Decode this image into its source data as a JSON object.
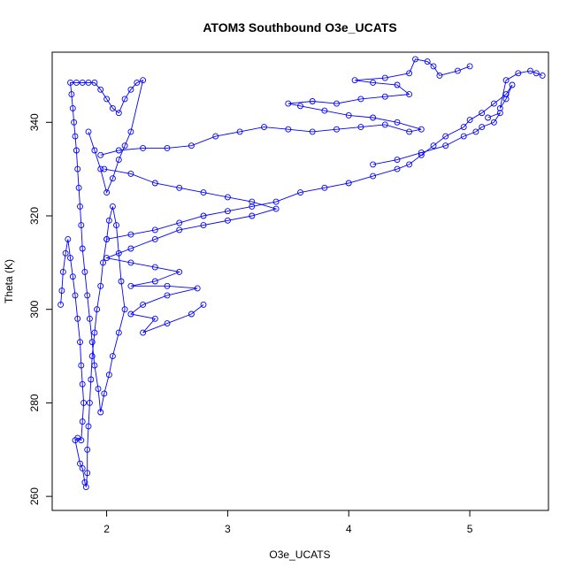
{
  "chart_data": {
    "type": "scatter",
    "title": "ATOM3 Southbound O3e_UCATS",
    "xlabel": "O3e_UCATS",
    "ylabel": "Theta (K)",
    "xlim": [
      1.55,
      5.65
    ],
    "ylim": [
      257,
      355
    ],
    "xticks": [
      2,
      3,
      4,
      5
    ],
    "yticks": [
      260,
      280,
      300,
      320,
      340
    ],
    "grid": false,
    "marker": "open-circle",
    "connected": true,
    "color": "#0000ff",
    "series": [
      {
        "points": [
          [
            1.62,
            301
          ],
          [
            1.63,
            304
          ],
          [
            1.64,
            308
          ],
          [
            1.66,
            312
          ],
          [
            1.68,
            315
          ],
          [
            1.7,
            311
          ],
          [
            1.72,
            307
          ],
          [
            1.74,
            303
          ],
          [
            1.76,
            298
          ],
          [
            1.78,
            293
          ],
          [
            1.79,
            288
          ],
          [
            1.8,
            284
          ],
          [
            1.81,
            280
          ],
          [
            1.8,
            276
          ],
          [
            1.79,
            272
          ],
          [
            1.76,
            272.5
          ],
          [
            1.74,
            272
          ],
          [
            1.78,
            267
          ],
          [
            1.8,
            266
          ],
          [
            1.82,
            263
          ],
          [
            1.83,
            262
          ],
          [
            1.84,
            265
          ],
          [
            1.84,
            270
          ],
          [
            1.85,
            275
          ],
          [
            1.86,
            280
          ],
          [
            1.87,
            285
          ],
          [
            1.88,
            290
          ],
          [
            1.9,
            295
          ],
          [
            1.92,
            300
          ],
          [
            1.95,
            305
          ],
          [
            1.97,
            310
          ],
          [
            2.0,
            315
          ],
          [
            2.02,
            319
          ],
          [
            2.05,
            322
          ],
          [
            2.08,
            318
          ],
          [
            2.1,
            312
          ],
          [
            2.12,
            306
          ],
          [
            2.15,
            300
          ],
          [
            2.1,
            295
          ],
          [
            2.05,
            290
          ],
          [
            2.02,
            286
          ],
          [
            1.98,
            282
          ],
          [
            1.95,
            278
          ],
          [
            1.93,
            283
          ],
          [
            1.9,
            288
          ],
          [
            1.88,
            293
          ],
          [
            1.86,
            298
          ],
          [
            1.84,
            303
          ],
          [
            1.82,
            308
          ],
          [
            1.8,
            313
          ],
          [
            1.79,
            318
          ],
          [
            1.78,
            322
          ],
          [
            1.77,
            326
          ],
          [
            1.76,
            330
          ],
          [
            1.75,
            334
          ],
          [
            1.74,
            337
          ],
          [
            1.73,
            340
          ],
          [
            1.72,
            343
          ],
          [
            1.71,
            346
          ],
          [
            1.7,
            348.5
          ],
          [
            1.75,
            348.5
          ],
          [
            1.8,
            348.5
          ],
          [
            1.85,
            348.5
          ],
          [
            1.9,
            348.5
          ],
          [
            1.95,
            347
          ],
          [
            2.0,
            345
          ],
          [
            2.05,
            343
          ],
          [
            2.1,
            342
          ],
          [
            2.15,
            345
          ],
          [
            2.2,
            347
          ],
          [
            2.25,
            348.5
          ],
          [
            2.3,
            349
          ],
          [
            2.2,
            338
          ],
          [
            2.15,
            335
          ],
          [
            2.1,
            332
          ],
          [
            2.05,
            328
          ],
          [
            2.0,
            325
          ],
          [
            1.95,
            330
          ],
          [
            1.9,
            334
          ],
          [
            1.85,
            338
          ]
        ]
      },
      {
        "points": [
          [
            1.95,
            333
          ],
          [
            2.1,
            334
          ],
          [
            2.3,
            334.5
          ],
          [
            2.5,
            334.5
          ],
          [
            2.7,
            335
          ],
          [
            2.9,
            337
          ],
          [
            3.1,
            338
          ],
          [
            3.3,
            339
          ],
          [
            3.5,
            338.5
          ],
          [
            3.7,
            338
          ],
          [
            3.9,
            338.5
          ],
          [
            4.1,
            339
          ],
          [
            4.3,
            339.5
          ],
          [
            4.5,
            338
          ],
          [
            4.6,
            338.5
          ],
          [
            4.4,
            340
          ],
          [
            4.2,
            341
          ],
          [
            4.0,
            341.5
          ],
          [
            3.8,
            342.5
          ],
          [
            3.6,
            343.5
          ],
          [
            3.5,
            344
          ],
          [
            3.7,
            344.5
          ],
          [
            3.9,
            344
          ],
          [
            4.1,
            345
          ],
          [
            4.3,
            345.5
          ],
          [
            4.5,
            346
          ],
          [
            4.4,
            348
          ],
          [
            4.2,
            348.5
          ],
          [
            4.05,
            349
          ],
          [
            4.3,
            349.5
          ],
          [
            4.5,
            350.5
          ],
          [
            4.55,
            353.5
          ],
          [
            4.65,
            353
          ],
          [
            4.7,
            352
          ],
          [
            4.75,
            350
          ],
          [
            4.9,
            351
          ],
          [
            5.0,
            352
          ]
        ]
      },
      {
        "points": [
          [
            2.0,
            315
          ],
          [
            2.2,
            316
          ],
          [
            2.4,
            317
          ],
          [
            2.6,
            318.5
          ],
          [
            2.8,
            320
          ],
          [
            3.0,
            321
          ],
          [
            3.2,
            322
          ],
          [
            3.4,
            323
          ],
          [
            3.6,
            325
          ],
          [
            3.8,
            326
          ],
          [
            4.0,
            327
          ],
          [
            4.2,
            328.5
          ],
          [
            4.4,
            330
          ],
          [
            4.5,
            331
          ],
          [
            4.6,
            333
          ],
          [
            4.7,
            335
          ],
          [
            4.8,
            337
          ],
          [
            4.95,
            339
          ],
          [
            5.0,
            340.5
          ],
          [
            5.1,
            342
          ],
          [
            5.2,
            344
          ],
          [
            5.3,
            346
          ],
          [
            5.35,
            348
          ],
          [
            5.3,
            345
          ],
          [
            5.25,
            343
          ],
          [
            5.3,
            349
          ],
          [
            5.4,
            350.5
          ],
          [
            5.5,
            351
          ],
          [
            5.55,
            350.5
          ],
          [
            5.6,
            350
          ]
        ]
      },
      {
        "points": [
          [
            1.98,
            330
          ],
          [
            2.2,
            329
          ],
          [
            2.4,
            327
          ],
          [
            2.6,
            326
          ],
          [
            2.8,
            325
          ],
          [
            3.0,
            324
          ],
          [
            3.2,
            323
          ],
          [
            3.4,
            321.5
          ],
          [
            3.2,
            320
          ],
          [
            3.0,
            319
          ],
          [
            2.8,
            318
          ],
          [
            2.6,
            317
          ],
          [
            2.4,
            315
          ],
          [
            2.2,
            313
          ],
          [
            2.0,
            311
          ],
          [
            2.2,
            310
          ],
          [
            2.4,
            309
          ],
          [
            2.6,
            308
          ],
          [
            2.4,
            306
          ],
          [
            2.2,
            305
          ],
          [
            2.5,
            305
          ],
          [
            2.75,
            304.5
          ],
          [
            2.5,
            303
          ],
          [
            2.3,
            301
          ],
          [
            2.2,
            299
          ],
          [
            2.4,
            298
          ],
          [
            2.3,
            295
          ],
          [
            2.5,
            297
          ],
          [
            2.7,
            299
          ],
          [
            2.8,
            301
          ]
        ]
      },
      {
        "points": [
          [
            4.2,
            331
          ],
          [
            4.4,
            332
          ],
          [
            4.6,
            333.5
          ],
          [
            4.8,
            335
          ],
          [
            4.95,
            337
          ],
          [
            5.05,
            338
          ],
          [
            5.1,
            339
          ],
          [
            5.2,
            340
          ],
          [
            5.25,
            342
          ],
          [
            5.15,
            341
          ]
        ]
      }
    ]
  }
}
